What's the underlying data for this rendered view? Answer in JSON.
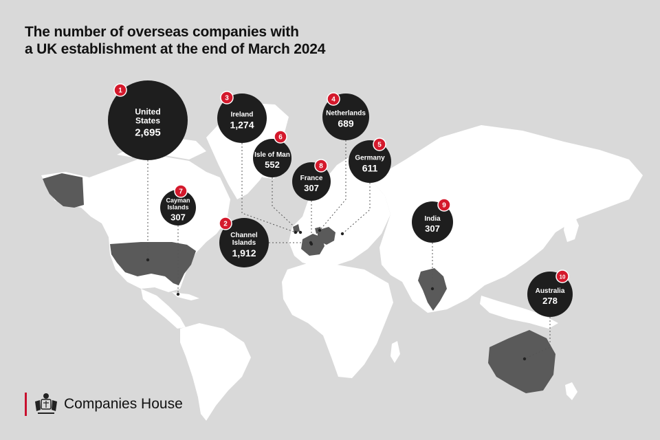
{
  "title": {
    "line1": "The number of overseas companies with",
    "line2": "a UK establishment at the end of March 2024"
  },
  "brand": {
    "name": "Companies House",
    "crest_icon": "royal-coat-of-arms-icon"
  },
  "colors": {
    "background": "#d9d9d9",
    "land": "#ffffff",
    "highlight_land": "#5a5a5a",
    "bubble": "#1e1e1e",
    "rank_badge": "#d4192c",
    "leader_line": "#555555"
  },
  "countries": [
    {
      "rank": "1",
      "name_lines": [
        "United",
        "States"
      ],
      "value": "2,695"
    },
    {
      "rank": "2",
      "name_lines": [
        "Channel",
        "Islands"
      ],
      "value": "1,912"
    },
    {
      "rank": "3",
      "name_lines": [
        "Ireland"
      ],
      "value": "1,274"
    },
    {
      "rank": "4",
      "name_lines": [
        "Netherlands"
      ],
      "value": "689"
    },
    {
      "rank": "5",
      "name_lines": [
        "Germany"
      ],
      "value": "611"
    },
    {
      "rank": "6",
      "name_lines": [
        "Isle of Man"
      ],
      "value": "552"
    },
    {
      "rank": "7",
      "name_lines": [
        "Cayman",
        "Islands"
      ],
      "value": "307"
    },
    {
      "rank": "8",
      "name_lines": [
        "France"
      ],
      "value": "307"
    },
    {
      "rank": "9",
      "name_lines": [
        "India"
      ],
      "value": "307"
    },
    {
      "rank": "10",
      "name_lines": [
        "Australia"
      ],
      "value": "278"
    }
  ]
}
